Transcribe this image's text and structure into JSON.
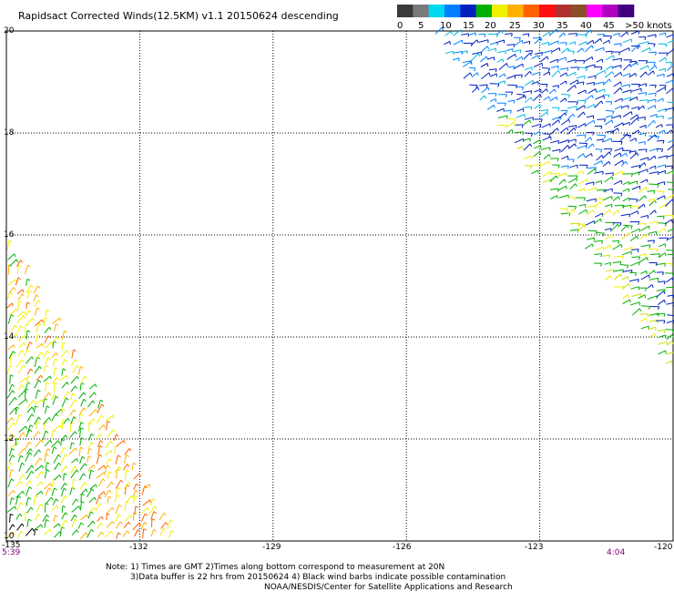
{
  "title": "Rapidsact Corrected Winds(12.5KM) v1.1 20150624 descending",
  "legend": {
    "labels": [
      "0",
      "5",
      "10",
      "15",
      "20",
      "25",
      "30",
      "35",
      "40",
      "45",
      ">50 knots"
    ],
    "colors": [
      "#3a3a3a",
      "#7a7a7a",
      "#00d8f0",
      "#0080ff",
      "#0020c0",
      "#00b000",
      "#f0f000",
      "#ffb000",
      "#ff6000",
      "#ff1010",
      "#b03030",
      "#8a5028",
      "#ff00ff",
      "#b000c0",
      "#400080"
    ]
  },
  "axes": {
    "lon_ticks": [
      "-135",
      "-132",
      "-129",
      "-126",
      "-123",
      "-120"
    ],
    "lat_ticks": [
      "20",
      "18",
      "16",
      "14",
      "12",
      "10"
    ],
    "lon_range": [
      -135,
      -120
    ],
    "lat_range": [
      10,
      20
    ]
  },
  "times": {
    "left": "5:39",
    "right": "4:04"
  },
  "notes": [
    "Note: 1) Times are GMT 2)Times along bottom correspond to measurement at 20N",
    "3)Data buffer is 22 hrs from 20150624 4) Black wind barbs indicate possible contamination",
    "NOAA/NESDIS/Center for Satellite Applications and Research"
  ],
  "swaths": [
    {
      "name": "northeast",
      "polygon": [
        [
          -126.2,
          20
        ],
        [
          -119.9,
          20
        ],
        [
          -119.9,
          13.1
        ],
        [
          -125.5,
          20
        ]
      ]
    },
    {
      "name": "southwest",
      "polygon": [
        [
          -135,
          15.9
        ],
        [
          -135,
          10
        ],
        [
          -131.2,
          10
        ]
      ]
    }
  ]
}
